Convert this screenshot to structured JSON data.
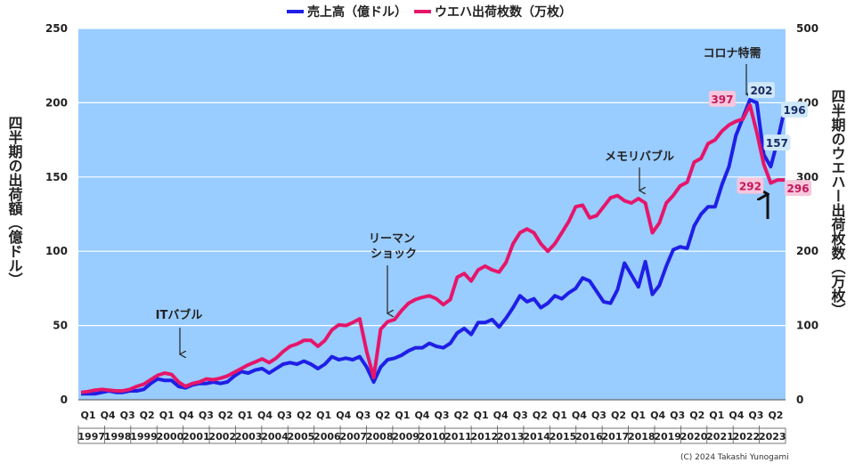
{
  "chart_data": {
    "type": "line",
    "quarter_cycle": [
      "Q1",
      "Q2",
      "Q3",
      "Q4"
    ],
    "start_year": 1997,
    "years": [
      "1997",
      "1998",
      "1999",
      "2000",
      "2001",
      "2002",
      "2003",
      "2004",
      "2005",
      "2006",
      "2007",
      "2008",
      "2009",
      "2010",
      "2011",
      "2012",
      "2013",
      "2014",
      "2015",
      "2016",
      "2017",
      "2018",
      "2019",
      "2020",
      "2021",
      "2022",
      "2023"
    ],
    "quarter_tick_labels": [
      "Q1",
      "Q4",
      "Q3",
      "Q2",
      "Q1",
      "Q4",
      "Q3",
      "Q2",
      "Q1",
      "Q4",
      "Q3",
      "Q2",
      "Q1",
      "Q4",
      "Q3",
      "Q2",
      "Q1",
      "Q4",
      "Q3",
      "Q2",
      "Q1",
      "Q4",
      "Q3",
      "Q2",
      "Q1",
      "Q4",
      "Q3",
      "Q2",
      "Q1",
      "Q4",
      "Q3",
      "Q2",
      "Q1",
      "Q4",
      "Q3",
      "Q2"
    ],
    "series": [
      {
        "name": "売上高（億ドル）",
        "axis": "left",
        "color": "#1f1fe6",
        "values": [
          4,
          4,
          4,
          5,
          6,
          5,
          5,
          6,
          6,
          7,
          11,
          14,
          13,
          13,
          9,
          8,
          10,
          11,
          11,
          12,
          11,
          12,
          16,
          19,
          18,
          20,
          21,
          18,
          21,
          24,
          25,
          24,
          26,
          24,
          21,
          24,
          29,
          27,
          28,
          27,
          29,
          22,
          12,
          22,
          27,
          28,
          30,
          33,
          35,
          35,
          38,
          36,
          35,
          38,
          45,
          48,
          44,
          52,
          52,
          54,
          49,
          55,
          62,
          70,
          66,
          68,
          62,
          65,
          70,
          68,
          72,
          75,
          82,
          80,
          73,
          66,
          65,
          74,
          92,
          84,
          76,
          93,
          71,
          77,
          90,
          101,
          103,
          102,
          117,
          125,
          130,
          130,
          145,
          157,
          178,
          190,
          202,
          200,
          165,
          157,
          175,
          196
        ]
      },
      {
        "name": "ウエハ出荷枚数（万枚）",
        "axis": "right",
        "color": "#e5166a",
        "values": [
          10,
          11,
          13,
          14,
          13,
          12,
          12,
          14,
          18,
          21,
          27,
          33,
          36,
          34,
          24,
          18,
          22,
          24,
          28,
          27,
          29,
          32,
          37,
          42,
          47,
          51,
          55,
          50,
          56,
          65,
          72,
          75,
          80,
          80,
          72,
          80,
          94,
          101,
          100,
          104,
          109,
          65,
          30,
          95,
          105,
          108,
          120,
          130,
          135,
          138,
          140,
          136,
          128,
          135,
          165,
          170,
          160,
          175,
          180,
          175,
          172,
          185,
          210,
          225,
          230,
          225,
          210,
          200,
          210,
          225,
          240,
          260,
          262,
          245,
          248,
          260,
          272,
          275,
          268,
          265,
          271,
          265,
          225,
          238,
          265,
          275,
          288,
          293,
          320,
          325,
          345,
          350,
          362,
          370,
          375,
          378,
          397,
          360,
          317,
          292,
          296,
          296
        ]
      }
    ],
    "left_axis": {
      "label": "四半期の出荷額（億ドル）",
      "min": 0,
      "max": 250,
      "ticks": [
        0,
        50,
        100,
        150,
        200,
        250
      ]
    },
    "right_axis": {
      "label": "四半期のウエハー出荷枚数（万枚）",
      "min": 0,
      "max": 500,
      "ticks": [
        0,
        100,
        200,
        300,
        400,
        500
      ]
    },
    "annotations": [
      "ITバブル",
      "リーマン",
      "ショック",
      "メモリバブル",
      "コロナ特需"
    ],
    "data_labels": [
      {
        "text": "397",
        "series": "ウエハ出荷枚数（万枚）",
        "index": 96
      },
      {
        "text": "292",
        "series": "ウエハ出荷枚数（万枚）",
        "index": 99
      },
      {
        "text": "296",
        "series": "ウエハ出荷枚数（万枚）",
        "index": 101
      },
      {
        "text": "202",
        "series": "売上高（億ドル）",
        "index": 96
      },
      {
        "text": "157",
        "series": "売上高（億ドル）",
        "index": 99
      },
      {
        "text": "196",
        "series": "売上高（億ドル）",
        "index": 101
      }
    ],
    "copyright": "(C)  2024 Takashi Yunogami"
  }
}
